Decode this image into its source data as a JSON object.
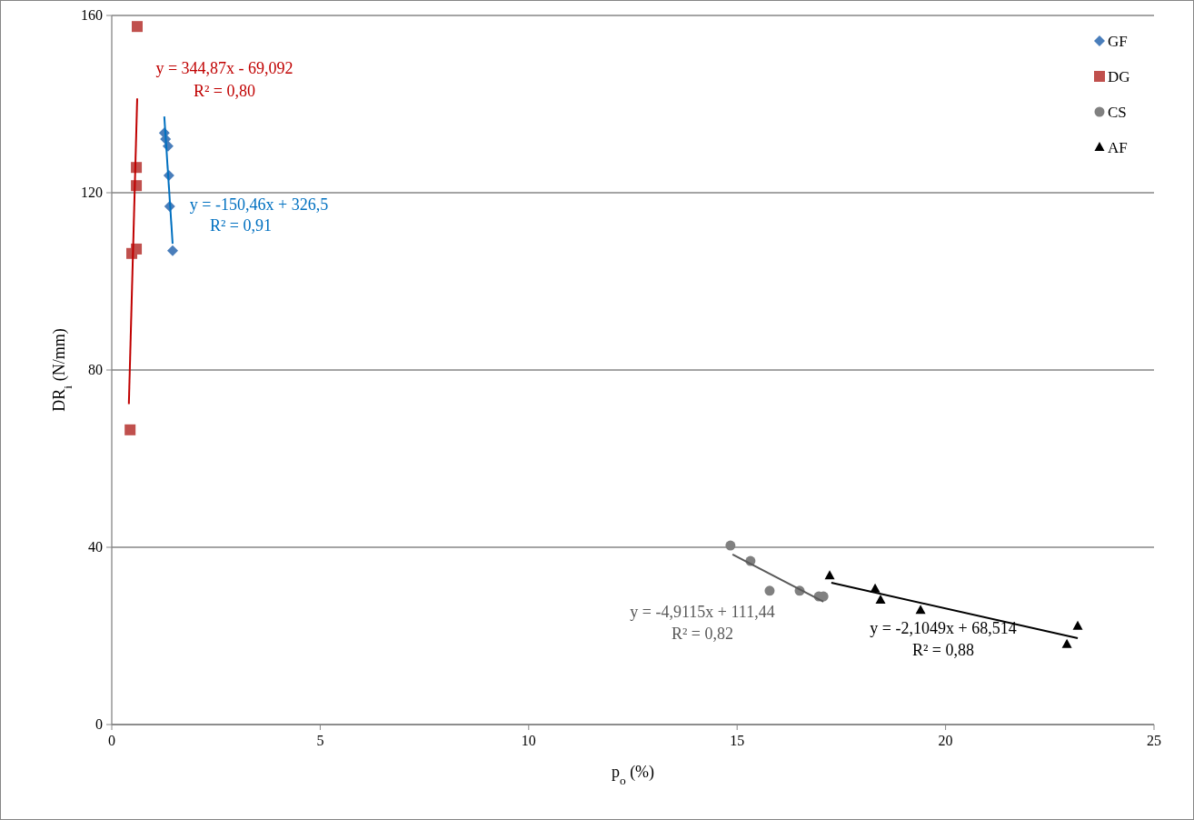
{
  "chart_data": {
    "type": "scatter",
    "xlabel": "p$_{o}$ (%)",
    "ylabel": "DR$_{i}$ (N/mm)",
    "xlim": [
      0,
      25
    ],
    "ylim": [
      0,
      160
    ],
    "xticks": [
      0,
      5,
      10,
      15,
      20,
      25
    ],
    "yticks": [
      0,
      40,
      80,
      120,
      160
    ],
    "grid": "y",
    "legend": "top right",
    "series": [
      {
        "name": "GF",
        "color": "#4a7ebb",
        "marker": "diamond",
        "x": [
          1.26,
          1.29,
          1.35,
          1.37,
          1.39,
          1.46
        ],
        "values": [
          133.5,
          132.1,
          130.5,
          123.9,
          116.9,
          106.9
        ]
      },
      {
        "name": "DG",
        "color": "#c0504d",
        "marker": "square",
        "x": [
          0.61,
          0.59,
          0.59,
          0.59,
          0.48,
          0.44
        ],
        "values": [
          157.5,
          125.7,
          121.6,
          107.3,
          106.3,
          66.5
        ]
      },
      {
        "name": "CS",
        "color": "#808080",
        "marker": "circle",
        "x": [
          14.84,
          15.32,
          15.78,
          16.5,
          16.96,
          17.07
        ],
        "values": [
          40.4,
          36.9,
          30.2,
          30.2,
          28.9,
          28.9
        ]
      },
      {
        "name": "AF",
        "color": "#000000",
        "marker": "triangle",
        "x": [
          17.22,
          18.31,
          18.44,
          19.4,
          22.91,
          23.17
        ],
        "values": [
          33.6,
          30.6,
          28.1,
          25.8,
          18.1,
          22.2
        ]
      },
      {
        "type": "line",
        "color": "#c00000",
        "x": [
          0.41,
          0.61
        ],
        "values": [
          72.3,
          141.3
        ]
      },
      {
        "type": "line",
        "color": "#0070c0",
        "x": [
          1.26,
          1.46
        ],
        "values": [
          137.2,
          108.5
        ]
      },
      {
        "type": "line",
        "color": "#595959",
        "x": [
          14.89,
          17.07
        ],
        "values": [
          38.4,
          27.7
        ]
      },
      {
        "type": "line",
        "color": "#000000",
        "x": [
          17.26,
          23.17
        ],
        "values": [
          32.0,
          19.5
        ]
      }
    ],
    "annotations": [
      "y = 344,87x - 69,092",
      "R² = 0,80",
      "y = -150,46x + 326,5",
      "R² = 0,91",
      "y = -4,9115x + 111,44",
      "R² = 0,82",
      "y = -2,1049x + 68,514",
      "R² = 0,88"
    ]
  }
}
